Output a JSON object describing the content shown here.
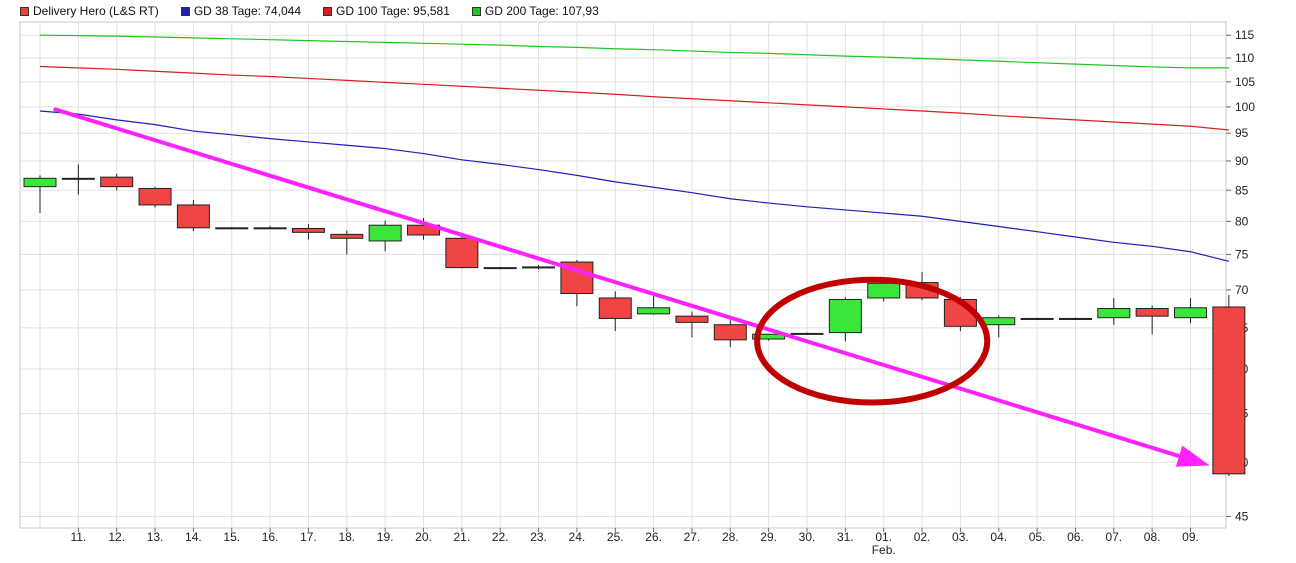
{
  "legend": [
    {
      "label": "Delivery Hero (L&S RT)",
      "color": "#e8403a"
    },
    {
      "label": "GD 38 Tage: 74,044",
      "color": "#1d1fb8"
    },
    {
      "label": "GD 100 Tage: 95,581",
      "color": "#d62020"
    },
    {
      "label": "GD 200 Tage: 107,93",
      "color": "#22c422"
    }
  ],
  "chart_data": {
    "type": "candlestick",
    "title": "",
    "xlabel": "",
    "ylabel": "",
    "yscale": "log",
    "ylim": [
      44,
      118
    ],
    "yticks": [
      45,
      50,
      55,
      60,
      65,
      70,
      75,
      80,
      85,
      90,
      95,
      100,
      105,
      110,
      115
    ],
    "x_tick_labels": [
      "11.",
      "12.",
      "13.",
      "14.",
      "15.",
      "16.",
      "17.",
      "18.",
      "19.",
      "20.",
      "21.",
      "22.",
      "23.",
      "24.",
      "25.",
      "26.",
      "27.",
      "28.",
      "29.",
      "30.",
      "31.",
      "01.",
      "02.",
      "03.",
      "04.",
      "05.",
      "06.",
      "07.",
      "08.",
      "09."
    ],
    "month_label": {
      "text": "Feb.",
      "under": "01."
    },
    "grid": true,
    "up_color": "#39e639",
    "down_color": "#f04545",
    "candles": [
      {
        "open": 85.6,
        "high": 87.5,
        "low": 81.3,
        "close": 87.0
      },
      {
        "open": 87.0,
        "high": 89.4,
        "low": 84.3,
        "close": 86.9
      },
      {
        "open": 87.2,
        "high": 87.8,
        "low": 85.0,
        "close": 85.6
      },
      {
        "open": 85.3,
        "high": 85.6,
        "low": 82.2,
        "close": 82.6
      },
      {
        "open": 82.6,
        "high": 83.4,
        "low": 78.5,
        "close": 79.0
      },
      {
        "open": 79.0,
        "high": 79.1,
        "low": 78.9,
        "close": 79.0
      },
      {
        "open": 79.0,
        "high": 79.3,
        "low": 78.8,
        "close": 78.9
      },
      {
        "open": 78.9,
        "high": 79.6,
        "low": 77.2,
        "close": 78.3
      },
      {
        "open": 78.0,
        "high": 78.6,
        "low": 75.0,
        "close": 77.4
      },
      {
        "open": 77.0,
        "high": 80.1,
        "low": 75.5,
        "close": 79.4
      },
      {
        "open": 79.4,
        "high": 80.5,
        "low": 77.2,
        "close": 77.9
      },
      {
        "open": 77.4,
        "high": 77.9,
        "low": 73.0,
        "close": 73.1
      },
      {
        "open": 73.1,
        "high": 73.2,
        "low": 73.0,
        "close": 73.1
      },
      {
        "open": 73.2,
        "high": 73.5,
        "low": 72.8,
        "close": 73.1
      },
      {
        "open": 73.9,
        "high": 74.2,
        "low": 67.8,
        "close": 69.5
      },
      {
        "open": 68.9,
        "high": 69.8,
        "low": 64.6,
        "close": 66.2
      },
      {
        "open": 66.8,
        "high": 69.6,
        "low": 66.7,
        "close": 67.6
      },
      {
        "open": 66.5,
        "high": 67.1,
        "low": 63.8,
        "close": 65.7
      },
      {
        "open": 65.4,
        "high": 66.2,
        "low": 62.6,
        "close": 63.5
      },
      {
        "open": 63.6,
        "high": 64.2,
        "low": 63.4,
        "close": 64.2
      },
      {
        "open": 64.2,
        "high": 64.4,
        "low": 64.1,
        "close": 64.3
      },
      {
        "open": 64.4,
        "high": 69.0,
        "low": 63.3,
        "close": 68.7
      },
      {
        "open": 68.9,
        "high": 71.6,
        "low": 68.4,
        "close": 70.9
      },
      {
        "open": 71.0,
        "high": 72.5,
        "low": 68.6,
        "close": 68.9
      },
      {
        "open": 68.7,
        "high": 69.0,
        "low": 64.6,
        "close": 65.2
      },
      {
        "open": 65.4,
        "high": 66.6,
        "low": 63.8,
        "close": 66.3
      },
      {
        "open": 66.2,
        "high": 66.3,
        "low": 66.1,
        "close": 66.2
      },
      {
        "open": 66.2,
        "high": 66.3,
        "low": 66.0,
        "close": 66.1
      },
      {
        "open": 66.3,
        "high": 68.9,
        "low": 65.4,
        "close": 67.5
      },
      {
        "open": 67.5,
        "high": 67.9,
        "low": 64.2,
        "close": 66.5
      },
      {
        "open": 66.3,
        "high": 68.9,
        "low": 65.6,
        "close": 67.6
      },
      {
        "open": 67.7,
        "high": 69.3,
        "low": 48.7,
        "close": 48.9
      }
    ],
    "series": [
      {
        "name": "GD 38 Tage",
        "color": "#1d1fb8",
        "values": [
          99.2,
          98.6,
          97.5,
          96.6,
          95.4,
          94.7,
          94.0,
          93.4,
          92.8,
          92.2,
          91.3,
          90.2,
          89.4,
          88.5,
          87.5,
          86.4,
          85.5,
          84.6,
          83.6,
          82.9,
          82.3,
          81.8,
          81.3,
          80.8,
          80.0,
          79.2,
          78.4,
          77.6,
          76.8,
          76.2,
          75.4,
          74.0
        ]
      },
      {
        "name": "GD 100 Tage",
        "color": "#d62020",
        "values": [
          108.2,
          107.9,
          107.6,
          107.2,
          106.8,
          106.4,
          106.1,
          105.7,
          105.3,
          104.9,
          104.5,
          104.1,
          103.7,
          103.3,
          102.9,
          102.5,
          102.0,
          101.6,
          101.2,
          100.8,
          100.4,
          100.0,
          99.6,
          99.2,
          98.8,
          98.3,
          97.9,
          97.5,
          97.1,
          96.7,
          96.3,
          95.6
        ]
      },
      {
        "name": "GD 200 Tage",
        "color": "#22c422",
        "values": [
          115.0,
          114.9,
          114.8,
          114.6,
          114.4,
          114.2,
          114.0,
          113.8,
          113.6,
          113.4,
          113.2,
          113.0,
          112.8,
          112.5,
          112.3,
          112.0,
          111.8,
          111.5,
          111.2,
          111.0,
          110.7,
          110.4,
          110.2,
          109.9,
          109.6,
          109.3,
          109.0,
          108.7,
          108.4,
          108.1,
          107.9,
          107.9
        ]
      }
    ],
    "annotations": [
      {
        "type": "trend-arrow",
        "color": "#ff22ff",
        "from": {
          "index": 0.4,
          "value": 99.5
        },
        "to": {
          "index": 30.5,
          "value": 49.7
        }
      },
      {
        "type": "ellipse",
        "color": "#c00000",
        "center": {
          "index": 21.7,
          "value": 64.0
        },
        "rx_candles": 3.0,
        "value_top": 71.4,
        "value_bottom": 56.2
      }
    ]
  }
}
